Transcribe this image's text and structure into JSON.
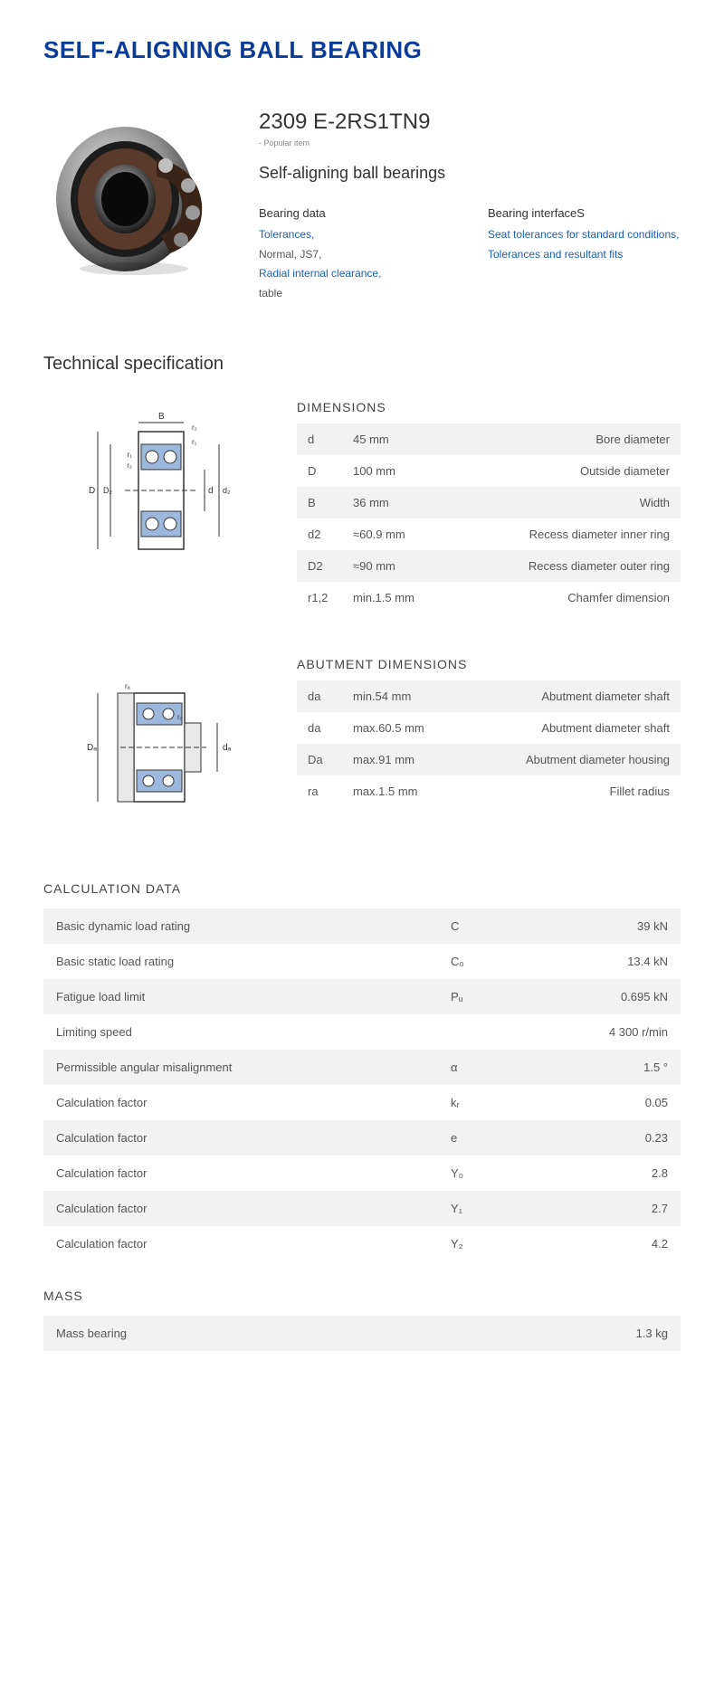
{
  "colors": {
    "title": "#0b3b99",
    "link": "#1a5fb8",
    "text": "#333333",
    "muted": "#555555",
    "row_bg": "#f2f2f2"
  },
  "title": "SELF-ALIGNING BALL BEARING",
  "product": {
    "model": "2309 E-2RS1TN9",
    "popular": "- Popular item",
    "subtitle": "Self-aligning ball bearings",
    "links_left_title": "Bearing data",
    "links_left": [
      {
        "text": "Tolerances,",
        "link": true
      },
      {
        "text": "Normal, JS7,",
        "link": false
      },
      {
        "text": "Radial internal clearance,",
        "link": true
      },
      {
        "text": "table",
        "link": false
      }
    ],
    "links_right_title": "Bearing interfaceS",
    "links_right": [
      {
        "text": "Seat tolerances for standard conditions,",
        "link": true
      },
      {
        "text": "Tolerances and resultant fits",
        "link": true
      }
    ]
  },
  "tech_title": "Technical specification",
  "dimensions": {
    "heading": "DIMENSIONS",
    "rows": [
      {
        "sym": "d",
        "val": "45  mm",
        "desc": "Bore diameter"
      },
      {
        "sym": "D",
        "val": "100  mm",
        "desc": "Outside diameter"
      },
      {
        "sym": "B",
        "val": "36  mm",
        "desc": "Width"
      },
      {
        "sym": "d2",
        "val": "≈60.9 mm",
        "desc": "Recess diameter inner ring"
      },
      {
        "sym": "D2",
        "val": "≈90 mm",
        "desc": "Recess diameter outer ring"
      },
      {
        "sym": "r1,2",
        "val": "min.1.5 mm",
        "desc": "Chamfer dimension"
      }
    ]
  },
  "abutment": {
    "heading": "ABUTMENT DIMENSIONS",
    "rows": [
      {
        "sym": "da",
        "val": "min.54 mm",
        "desc": "Abutment diameter shaft"
      },
      {
        "sym": "da",
        "val": "max.60.5 mm",
        "desc": "Abutment diameter shaft"
      },
      {
        "sym": "Da",
        "val": "max.91 mm",
        "desc": "Abutment diameter housing"
      },
      {
        "sym": "ra",
        "val": "max.1.5 mm",
        "desc": "Fillet radius"
      }
    ]
  },
  "calc": {
    "heading": "CALCULATION DATA",
    "rows": [
      {
        "label": "Basic dynamic load rating",
        "sym": "C",
        "val": "39  kN"
      },
      {
        "label": "Basic static load rating",
        "sym": "C₀",
        "val": "13.4  kN"
      },
      {
        "label": "Fatigue load limit",
        "sym": "Pᵤ",
        "val": "0.695  kN"
      },
      {
        "label": "Limiting speed",
        "sym": "",
        "val": "4 300  r/min"
      },
      {
        "label": "Permissible angular misalignment",
        "sym": "α",
        "val": "1.5  °"
      },
      {
        "label": "Calculation factor",
        "sym": "kᵣ",
        "val": "0.05"
      },
      {
        "label": "Calculation factor",
        "sym": "e",
        "val": "0.23"
      },
      {
        "label": "Calculation factor",
        "sym": "Y₀",
        "val": "2.8"
      },
      {
        "label": "Calculation factor",
        "sym": "Y₁",
        "val": "2.7"
      },
      {
        "label": "Calculation factor",
        "sym": "Y₂",
        "val": "4.2"
      }
    ]
  },
  "mass": {
    "heading": "MASS",
    "rows": [
      {
        "label": "Mass bearing",
        "sym": "",
        "val": "1.3  kg"
      }
    ]
  }
}
